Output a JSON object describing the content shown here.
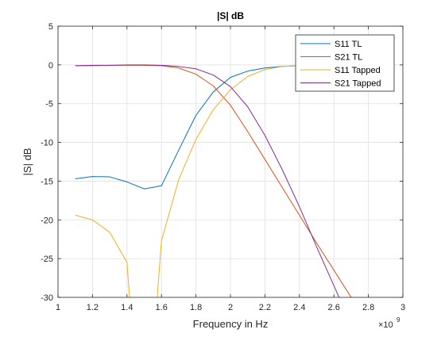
{
  "chart_data": {
    "type": "line",
    "title": "|S| dB",
    "xlabel": "Frequency in Hz",
    "ylabel": "|S| dB",
    "x_exponent_label": "×10",
    "x_exponent_power": "9",
    "xlim": [
      1,
      3
    ],
    "ylim": [
      -30,
      5
    ],
    "xticks": [
      "1",
      "1.2",
      "1.4",
      "1.6",
      "1.8",
      "2",
      "2.2",
      "2.4",
      "2.6",
      "2.8",
      "3"
    ],
    "yticks": [
      "5",
      "0",
      "-5",
      "-10",
      "-15",
      "-20",
      "-25",
      "-30"
    ],
    "grid": true,
    "legend_position": "top-right",
    "series": [
      {
        "name": "S11 TL",
        "color": "#0072BD",
        "points": [
          [
            1.1,
            -14.7
          ],
          [
            1.2,
            -14.4
          ],
          [
            1.3,
            -14.45
          ],
          [
            1.4,
            -15.1
          ],
          [
            1.5,
            -16.0
          ],
          [
            1.6,
            -15.6
          ],
          [
            1.7,
            -11.0
          ],
          [
            1.8,
            -6.5
          ],
          [
            1.9,
            -3.5
          ],
          [
            2.0,
            -1.6
          ],
          [
            2.1,
            -0.8
          ],
          [
            2.2,
            -0.4
          ],
          [
            2.3,
            -0.2
          ],
          [
            2.4,
            -0.1
          ]
        ]
      },
      {
        "name": "S21 TL",
        "color": "#D95319",
        "points": [
          [
            1.1,
            -0.1
          ],
          [
            1.2,
            -0.1
          ],
          [
            1.3,
            -0.05
          ],
          [
            1.4,
            -0.05
          ],
          [
            1.5,
            -0.05
          ],
          [
            1.6,
            -0.1
          ],
          [
            1.7,
            -0.4
          ],
          [
            1.8,
            -1.2
          ],
          [
            1.9,
            -2.7
          ],
          [
            2.0,
            -5.2
          ],
          [
            2.1,
            -8.6
          ],
          [
            2.2,
            -12.2
          ],
          [
            2.3,
            -15.8
          ],
          [
            2.4,
            -19.4
          ],
          [
            2.5,
            -23.0
          ],
          [
            2.6,
            -26.5
          ],
          [
            2.7,
            -30.0
          ]
        ]
      },
      {
        "name": "S11 Tapped",
        "color": "#EDB120",
        "points": [
          [
            1.1,
            -19.4
          ],
          [
            1.2,
            -20.0
          ],
          [
            1.3,
            -21.6
          ],
          [
            1.4,
            -25.5
          ],
          [
            1.42,
            -31.5
          ],
          null,
          [
            1.57,
            -31.5
          ],
          [
            1.6,
            -22.7
          ],
          [
            1.7,
            -14.8
          ],
          [
            1.8,
            -9.6
          ],
          [
            1.9,
            -5.8
          ],
          [
            2.0,
            -3.2
          ],
          [
            2.1,
            -1.5
          ],
          [
            2.2,
            -0.6
          ],
          [
            2.3,
            -0.2
          ],
          [
            2.4,
            -0.1
          ]
        ]
      },
      {
        "name": "S21 Tapped",
        "color": "#7E2F8E",
        "points": [
          [
            1.1,
            -0.1
          ],
          [
            1.2,
            -0.05
          ],
          [
            1.3,
            -0.05
          ],
          [
            1.4,
            0.0
          ],
          [
            1.5,
            0.0
          ],
          [
            1.6,
            -0.05
          ],
          [
            1.7,
            -0.2
          ],
          [
            1.8,
            -0.5
          ],
          [
            1.9,
            -1.3
          ],
          [
            2.0,
            -2.8
          ],
          [
            2.1,
            -5.4
          ],
          [
            2.2,
            -9.1
          ],
          [
            2.3,
            -13.5
          ],
          [
            2.4,
            -18.3
          ],
          [
            2.5,
            -23.5
          ],
          [
            2.6,
            -28.5
          ],
          [
            2.63,
            -30.0
          ]
        ]
      }
    ]
  }
}
